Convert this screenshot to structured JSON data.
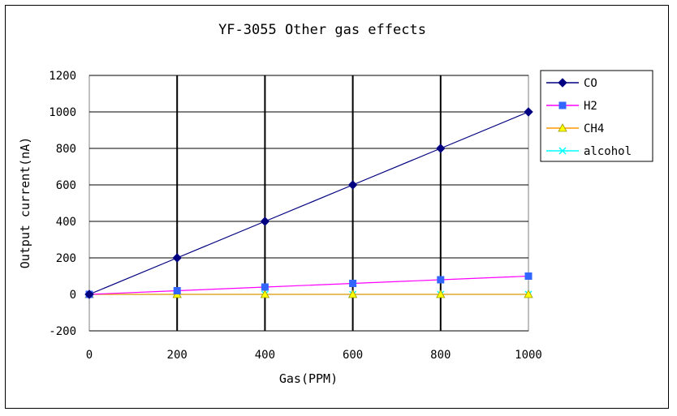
{
  "chart_data": {
    "type": "line",
    "title": "YF-3055 Other gas effects",
    "xlabel": "Gas(PPM)",
    "ylabel": "Output current(nA)",
    "x": [
      0,
      200,
      400,
      600,
      800,
      1000
    ],
    "xlim": [
      0,
      1000
    ],
    "ylim": [
      -200,
      1200
    ],
    "xticks": [
      "0",
      "200",
      "400",
      "600",
      "800",
      "1000"
    ],
    "yticks": [
      "-200",
      "0",
      "200",
      "400",
      "600",
      "800",
      "1000",
      "1200"
    ],
    "grid": true,
    "legend_position": "right",
    "series": [
      {
        "name": "CO",
        "values": [
          0,
          200,
          400,
          600,
          800,
          1000
        ],
        "color": "#000080",
        "marker": "diamond"
      },
      {
        "name": "H2",
        "values": [
          0,
          20,
          40,
          60,
          80,
          100
        ],
        "color": "#ff00ff",
        "marker": "square",
        "marker_color": "#3366ff"
      },
      {
        "name": "CH4",
        "values": [
          0,
          0,
          0,
          0,
          0,
          0
        ],
        "color": "#ff9900",
        "marker": "triangle",
        "marker_color": "#ffff00"
      },
      {
        "name": "alcohol",
        "values": [
          0,
          0,
          0,
          0,
          0,
          0
        ],
        "color": "#00ffff",
        "marker": "x"
      }
    ]
  }
}
